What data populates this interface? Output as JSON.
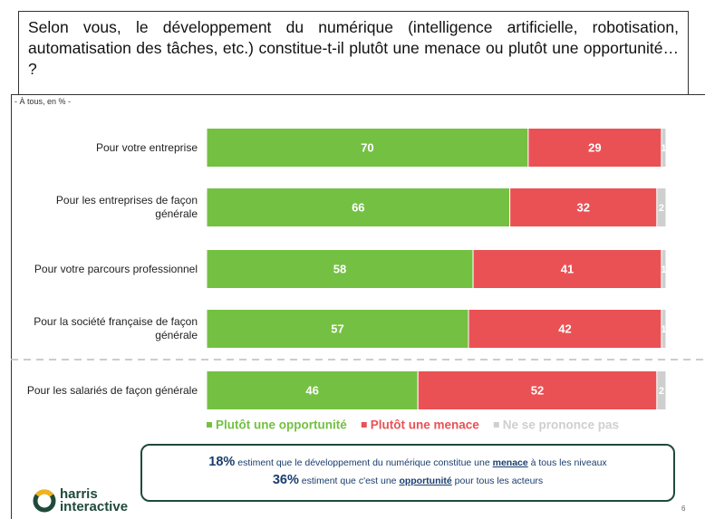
{
  "chart_data": {
    "type": "bar",
    "orientation": "horizontal",
    "stacked": true,
    "title": "Selon vous, le développement du numérique (intelligence artificielle, robotisation, automatisation des tâches, etc.) constitue-t-il plutôt une menace ou plutôt une opportunité… ?",
    "subtitle": "- À tous, en % -",
    "categories": [
      "Pour votre entreprise",
      "Pour les entreprises de façon générale",
      "Pour votre parcours professionnel",
      "Pour la société française de façon générale",
      "Pour les salariés de façon générale"
    ],
    "series": [
      {
        "name": "Plutôt une opportunité",
        "color": "#74c043",
        "values": [
          70,
          66,
          58,
          57,
          46
        ]
      },
      {
        "name": "Plutôt une menace",
        "color": "#ea5155",
        "values": [
          29,
          32,
          41,
          42,
          52
        ]
      },
      {
        "name": "Ne se prononce pas",
        "color": "#cfcfcf",
        "values": [
          1,
          2,
          1,
          1,
          2
        ]
      }
    ],
    "xlim": [
      0,
      100
    ]
  },
  "callout": {
    "line1": {
      "stat": "18%",
      "text1": " estiment que le développement du numérique constitue une ",
      "key": "menace",
      "text2": " à tous les niveaux"
    },
    "line2": {
      "stat": "36%",
      "text1": " estiment que c'est une ",
      "key": "opportunité",
      "text2": " pour tous les acteurs"
    }
  },
  "logo": {
    "line1": "harris",
    "line2": "interactive"
  },
  "page_number": 6
}
